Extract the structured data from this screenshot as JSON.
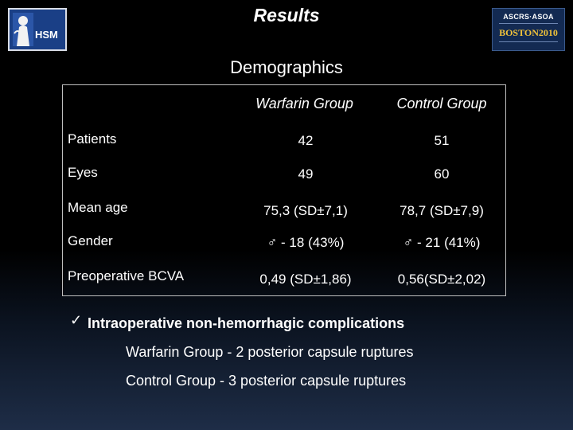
{
  "header": {
    "title": "Results",
    "logo_left_text": "HSM",
    "logo_right_top": "ASCRS·ASOA",
    "logo_right_main": "BOSTON2010"
  },
  "subtitle": "Demographics",
  "table": {
    "headers": [
      "",
      "Warfarin Group",
      "Control Group"
    ],
    "rows": [
      {
        "label": "Patients",
        "warfarin": "42",
        "control": "51"
      },
      {
        "label": "Eyes",
        "warfarin": "49",
        "control": "60"
      },
      {
        "label": "Mean age",
        "warfarin": "75,3 (SD±7,1)",
        "control": "78,7 (SD±7,9)"
      },
      {
        "label": "Gender",
        "warfarin": "♂ - 18 (43%)",
        "control": "♂ - 21 (41%)"
      },
      {
        "label": "Preoperative BCVA",
        "warfarin": "0,49 (SD±1,86)",
        "control": "0,56(SD±2,02)"
      }
    ]
  },
  "bullet": {
    "icon": "✓",
    "heading": "Intraoperative non-hemorrhagic complications",
    "lines": [
      "Warfarin Group - 2 posterior capsule ruptures",
      "Control Group - 3 posterior capsule ruptures"
    ]
  }
}
